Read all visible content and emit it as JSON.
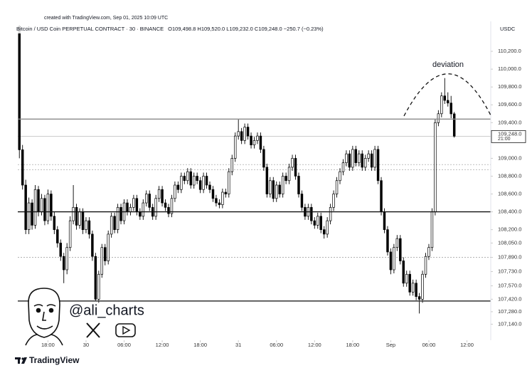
{
  "header": {
    "created": "created with TradingView.com, Sep 01, 2025 10:09 UTC",
    "symbol": "Bitcoin / USD Coin PERPETUAL CONTRACT · 30 · BINANCE",
    "ohlc": "O109,498.8 H109,520.0 L109,232.0 C109,248.0 −250.7 (−0.23%)",
    "currency": "USDC"
  },
  "chart_data": {
    "type": "candlestick",
    "annotation": "deviation",
    "up_color": "#ffffff",
    "down_color": "#000000",
    "ohlc": [
      [
        110480,
        110496,
        109000,
        109096
      ],
      [
        109096,
        109150,
        108650,
        108700
      ],
      [
        108700,
        108760,
        108150,
        108200
      ],
      [
        108200,
        108560,
        108150,
        108500
      ],
      [
        108500,
        108540,
        108200,
        108250
      ],
      [
        108250,
        108700,
        108210,
        108650
      ],
      [
        108650,
        108690,
        108350,
        108400
      ],
      [
        108400,
        108600,
        108360,
        108550
      ],
      [
        108550,
        108590,
        108250,
        108300
      ],
      [
        108300,
        108650,
        108260,
        108600
      ],
      [
        108600,
        108640,
        108300,
        108350
      ],
      [
        108350,
        108400,
        108150,
        108200
      ],
      [
        108200,
        108240,
        108000,
        108050
      ],
      [
        108050,
        108090,
        107850,
        107900
      ],
      [
        107900,
        107940,
        107600,
        107750
      ],
      [
        107750,
        108050,
        107700,
        108000
      ],
      [
        108000,
        108350,
        107960,
        108300
      ],
      [
        108300,
        108700,
        108260,
        108450
      ],
      [
        108450,
        108490,
        108200,
        108250
      ],
      [
        108250,
        108440,
        108210,
        108400
      ],
      [
        108400,
        108440,
        108150,
        108200
      ],
      [
        108200,
        108340,
        108160,
        108300
      ],
      [
        108300,
        108340,
        108100,
        108150
      ],
      [
        108150,
        108190,
        107850,
        107900
      ],
      [
        107900,
        107940,
        107400,
        107420
      ],
      [
        107420,
        107740,
        107380,
        107700
      ],
      [
        107700,
        108040,
        107660,
        108000
      ],
      [
        108000,
        108040,
        107800,
        107850
      ],
      [
        107850,
        108190,
        107810,
        108150
      ],
      [
        108150,
        108390,
        108110,
        108350
      ],
      [
        108350,
        108390,
        108160,
        108200
      ],
      [
        108200,
        108490,
        108160,
        108450
      ],
      [
        108450,
        108490,
        108260,
        108300
      ],
      [
        108300,
        108540,
        108260,
        108500
      ],
      [
        108500,
        108540,
        108360,
        108400
      ],
      [
        108400,
        108490,
        108360,
        108450
      ],
      [
        108450,
        108590,
        108410,
        108550
      ],
      [
        108550,
        108590,
        108360,
        108400
      ],
      [
        108400,
        108440,
        108310,
        108350
      ],
      [
        108350,
        108540,
        108310,
        108500
      ],
      [
        108500,
        108640,
        108460,
        108600
      ],
      [
        108600,
        108640,
        108410,
        108450
      ],
      [
        108450,
        108490,
        108310,
        108350
      ],
      [
        108350,
        108590,
        108310,
        108550
      ],
      [
        108550,
        108690,
        108510,
        108650
      ],
      [
        108650,
        108690,
        108460,
        108500
      ],
      [
        108500,
        108540,
        108410,
        108450
      ],
      [
        108450,
        108490,
        108340,
        108380
      ],
      [
        108380,
        108590,
        108340,
        108550
      ],
      [
        108550,
        108740,
        108510,
        108700
      ],
      [
        108700,
        108740,
        108610,
        108650
      ],
      [
        108650,
        108840,
        108610,
        108800
      ],
      [
        108800,
        108840,
        108710,
        108750
      ],
      [
        108750,
        108890,
        108710,
        108850
      ],
      [
        108850,
        108890,
        108660,
        108700
      ],
      [
        108700,
        108840,
        108660,
        108800
      ],
      [
        108800,
        108840,
        108710,
        108750
      ],
      [
        108750,
        108790,
        108610,
        108650
      ],
      [
        108650,
        108840,
        108610,
        108800
      ],
      [
        108800,
        108840,
        108660,
        108700
      ],
      [
        108700,
        108740,
        108610,
        108650
      ],
      [
        108650,
        108690,
        108510,
        108550
      ],
      [
        108550,
        108590,
        108460,
        108500
      ],
      [
        108500,
        108540,
        108440,
        108480
      ],
      [
        108480,
        108660,
        108440,
        108620
      ],
      [
        108620,
        108660,
        108560,
        108600
      ],
      [
        108600,
        108890,
        108560,
        108850
      ],
      [
        108850,
        109040,
        108810,
        109000
      ],
      [
        109000,
        109290,
        108960,
        109250
      ],
      [
        109250,
        109440,
        109210,
        109300
      ],
      [
        109300,
        109340,
        109160,
        109200
      ],
      [
        109200,
        109390,
        109160,
        109350
      ],
      [
        109350,
        109390,
        109210,
        109250
      ],
      [
        109250,
        109290,
        109110,
        109150
      ],
      [
        109150,
        109240,
        109110,
        109200
      ],
      [
        109200,
        109290,
        109160,
        109250
      ],
      [
        109250,
        109290,
        109060,
        109100
      ],
      [
        109100,
        109140,
        108860,
        108900
      ],
      [
        108900,
        108940,
        108560,
        108600
      ],
      [
        108600,
        108790,
        108560,
        108750
      ],
      [
        108750,
        108790,
        108510,
        108550
      ],
      [
        108550,
        108740,
        108510,
        108700
      ],
      [
        108700,
        108740,
        108560,
        108600
      ],
      [
        108600,
        108840,
        108560,
        108800
      ],
      [
        108800,
        108840,
        108710,
        108750
      ],
      [
        108750,
        108940,
        108710,
        108900
      ],
      [
        108900,
        109040,
        108860,
        109000
      ],
      [
        109000,
        109040,
        108760,
        108800
      ],
      [
        108800,
        108840,
        108560,
        108600
      ],
      [
        108600,
        108640,
        108410,
        108450
      ],
      [
        108450,
        108490,
        108310,
        108350
      ],
      [
        108350,
        108490,
        108310,
        108450
      ],
      [
        108450,
        108490,
        108260,
        108300
      ],
      [
        108300,
        108340,
        108210,
        108250
      ],
      [
        108250,
        108390,
        108210,
        108350
      ],
      [
        108350,
        108390,
        108160,
        108200
      ],
      [
        108200,
        108240,
        108100,
        108150
      ],
      [
        108150,
        108340,
        108110,
        108300
      ],
      [
        108300,
        108490,
        108260,
        108450
      ],
      [
        108450,
        108640,
        108410,
        108600
      ],
      [
        108600,
        108790,
        108560,
        108750
      ],
      [
        108750,
        108890,
        108710,
        108850
      ],
      [
        108850,
        108990,
        108810,
        108950
      ],
      [
        108950,
        109090,
        108910,
        109050
      ],
      [
        109050,
        109090,
        108860,
        108900
      ],
      [
        108900,
        109140,
        108860,
        109100
      ],
      [
        109100,
        109140,
        108910,
        108950
      ],
      [
        108950,
        109090,
        108910,
        109050
      ],
      [
        109050,
        109090,
        108860,
        108900
      ],
      [
        108900,
        109040,
        108860,
        109000
      ],
      [
        109000,
        109090,
        108960,
        109050
      ],
      [
        109050,
        109090,
        108860,
        108900
      ],
      [
        108900,
        109140,
        108860,
        109100
      ],
      [
        109100,
        109140,
        108710,
        108750
      ],
      [
        108750,
        108790,
        108360,
        108400
      ],
      [
        108400,
        108440,
        108160,
        108200
      ],
      [
        108200,
        108240,
        107910,
        107950
      ],
      [
        107950,
        107990,
        107700,
        107750
      ],
      [
        107750,
        108040,
        107710,
        108000
      ],
      [
        108000,
        108140,
        107960,
        108100
      ],
      [
        108100,
        108140,
        107810,
        107850
      ],
      [
        107850,
        107890,
        107560,
        107600
      ],
      [
        107600,
        107740,
        107560,
        107700
      ],
      [
        107700,
        107740,
        107460,
        107500
      ],
      [
        107500,
        107640,
        107460,
        107600
      ],
      [
        107600,
        107640,
        107410,
        107450
      ],
      [
        107450,
        107490,
        107260,
        107420
      ],
      [
        107420,
        107740,
        107380,
        107700
      ],
      [
        107700,
        107940,
        107660,
        107900
      ],
      [
        107900,
        108040,
        107860,
        108000
      ],
      [
        108000,
        108440,
        107960,
        108400
      ],
      [
        108400,
        109440,
        108360,
        109400
      ],
      [
        109400,
        109540,
        109360,
        109500
      ],
      [
        109500,
        109740,
        109460,
        109700
      ],
      [
        109700,
        109900,
        109610,
        109650
      ],
      [
        109650,
        109740,
        109580,
        109620
      ],
      [
        109620,
        109700,
        109450,
        109498.8
      ],
      [
        109498.8,
        109520,
        109232,
        109248
      ]
    ],
    "xlim": [
      -0.5,
      148.5
    ],
    "xticks": [
      {
        "value": 9,
        "label": "18:00"
      },
      {
        "value": 21,
        "label": "30"
      },
      {
        "value": 33,
        "label": "06:00"
      },
      {
        "value": 45,
        "label": "12:00"
      },
      {
        "value": 57,
        "label": "18:00"
      },
      {
        "value": 69,
        "label": "31"
      },
      {
        "value": 81,
        "label": "06:00"
      },
      {
        "value": 93,
        "label": "12:00"
      },
      {
        "value": 105,
        "label": "18:00"
      },
      {
        "value": 117,
        "label": "Sep"
      },
      {
        "value": 129,
        "label": "06:00"
      },
      {
        "value": 141,
        "label": "12:00"
      }
    ],
    "ylim": [
      106960,
      110496
    ],
    "yticks": [
      {
        "value": 110200,
        "label": "110,200.0"
      },
      {
        "value": 110000,
        "label": "110,000.0"
      },
      {
        "value": 109800,
        "label": "109,800.0"
      },
      {
        "value": 109600,
        "label": "109,600.0"
      },
      {
        "value": 109400,
        "label": "109,400.0"
      },
      {
        "value": 109000,
        "label": "109,000.0"
      },
      {
        "value": 108800,
        "label": "108,800.0"
      },
      {
        "value": 108600,
        "label": "108,600.0"
      },
      {
        "value": 108400,
        "label": "108,400.0"
      },
      {
        "value": 108200,
        "label": "108,200.0"
      },
      {
        "value": 108050,
        "label": "108,050.0"
      },
      {
        "value": 107890,
        "label": "107,890.0"
      },
      {
        "value": 107730,
        "label": "107,730.0"
      },
      {
        "value": 107570,
        "label": "107,570.0"
      },
      {
        "value": 107420,
        "label": "107,420.0"
      },
      {
        "value": 107280,
        "label": "107,280.0"
      },
      {
        "value": 107140,
        "label": "107,140.0"
      }
    ],
    "levels": [
      109440,
      108400,
      107400
    ],
    "level_colors": [
      "#8a8a8a",
      "#111111",
      "#333333"
    ],
    "dotted_levels": [
      108930,
      108870,
      107890
    ],
    "last_price": {
      "value": 109248,
      "label": "109,248.0"
    },
    "countdown": "21:00"
  },
  "watermark": {
    "handle": "@ali_charts"
  },
  "footer": {
    "brand": "TradingView"
  }
}
